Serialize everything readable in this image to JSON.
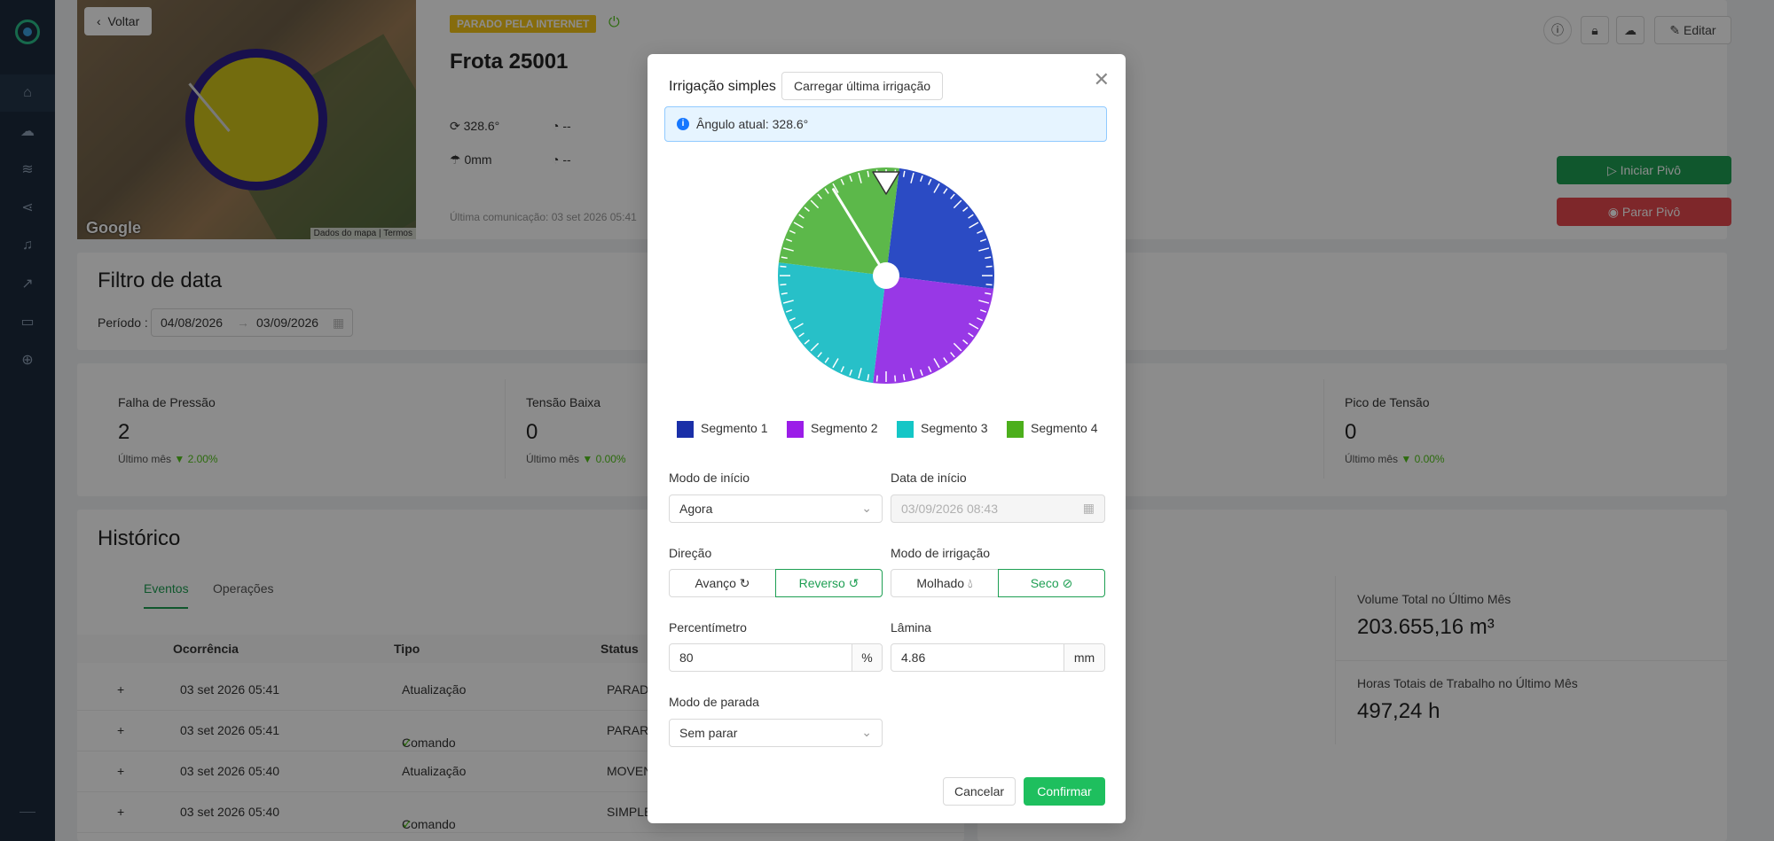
{
  "sidebar": {
    "items": [
      "home-icon",
      "cloud-icon",
      "layers-icon",
      "share-icon",
      "bell-icon",
      "chart-icon",
      "monitor-icon",
      "target-icon"
    ]
  },
  "map": {
    "back_label": "Voltar",
    "google_label": "Google",
    "map_data_label": "Dados do mapa",
    "terms_label": "Termos"
  },
  "header": {
    "status_badge": "PARADO PELA INTERNET",
    "title": "Frota 25001",
    "angle": "328.6°",
    "speed1": "--",
    "rain": "0mm",
    "speed2": "--",
    "last_comm": "Última comunicação: 03 set 2026 05:41",
    "edit_label": "Editar",
    "start_pivot_label": "Iniciar Pivô",
    "stop_pivot_label": "Parar Pivô"
  },
  "date_filter": {
    "title": "Filtro de data",
    "period_label": "Período :",
    "start": "04/08/2026",
    "end": "03/09/2026"
  },
  "kpis": [
    {
      "label": "Falha de Pressão",
      "value": "2",
      "sub": "Último mês",
      "trend": "▼ 2.00%"
    },
    {
      "label": "Tensão Baixa",
      "value": "0",
      "sub": "Último mês",
      "trend": "▼ 0.00%"
    },
    {
      "label": "Pico de Tensão",
      "value": "0",
      "sub": "Último mês",
      "trend": "▼ 0.00%"
    }
  ],
  "history": {
    "title": "Histórico",
    "tabs": [
      "Eventos",
      "Operações"
    ],
    "columns": [
      "Ocorrência",
      "Tipo",
      "Status"
    ],
    "rows": [
      {
        "expand": "+",
        "date": "03 set 2026 05:41",
        "type": "Atualização",
        "status": "PARADO"
      },
      {
        "expand": "+",
        "date": "03 set 2026 05:41",
        "type": "Comando",
        "status": "PARAR"
      },
      {
        "expand": "+",
        "date": "03 set 2026 05:40",
        "type": "Atualização",
        "status": "MOVEN"
      },
      {
        "expand": "+",
        "date": "03 set 2026 05:40",
        "type": "Comando",
        "status": "SIMPLE"
      }
    ]
  },
  "right_stats": {
    "volume_label": "Volume Total no Último Mês",
    "volume_value": "203.655,16 m³",
    "hours_label": "Horas Totais de Trabalho no Último Mês",
    "hours_value": "497,24 h"
  },
  "modal": {
    "title": "Irrigação simples",
    "load_last_label": "Carregar última irrigação",
    "current_angle": "Ângulo atual: 328.6°",
    "dial_angle_deg": 328.6,
    "segments": [
      {
        "name": "Segmento 1",
        "color": "#1a2fa8",
        "pie_color": "#2b4bc4"
      },
      {
        "name": "Segmento 2",
        "color": "#9b1de8",
        "pie_color": "#9838e6"
      },
      {
        "name": "Segmento 3",
        "color": "#14c6c6",
        "pie_color": "#27c0c8"
      },
      {
        "name": "Segmento 4",
        "color": "#4caf1c",
        "pie_color": "#5cb84a"
      }
    ],
    "start_mode_label": "Modo de início",
    "start_mode_value": "Agora",
    "start_date_label": "Data de início",
    "start_date_value": "03/09/2026 08:43",
    "direction_label": "Direção",
    "direction_options": [
      "Avanço",
      "Reverso"
    ],
    "direction_selected": "Reverso",
    "irrigation_mode_label": "Modo de irrigação",
    "irrigation_mode_options": [
      "Molhado",
      "Seco"
    ],
    "irrigation_mode_selected": "Seco",
    "percentimeter_label": "Percentímetro",
    "percentimeter_value": "80",
    "percentimeter_unit": "%",
    "lamina_label": "Lâmina",
    "lamina_value": "4.86",
    "lamina_unit": "mm",
    "stop_mode_label": "Modo de parada",
    "stop_mode_value": "Sem parar",
    "cancel_label": "Cancelar",
    "confirm_label": "Confirmar"
  }
}
